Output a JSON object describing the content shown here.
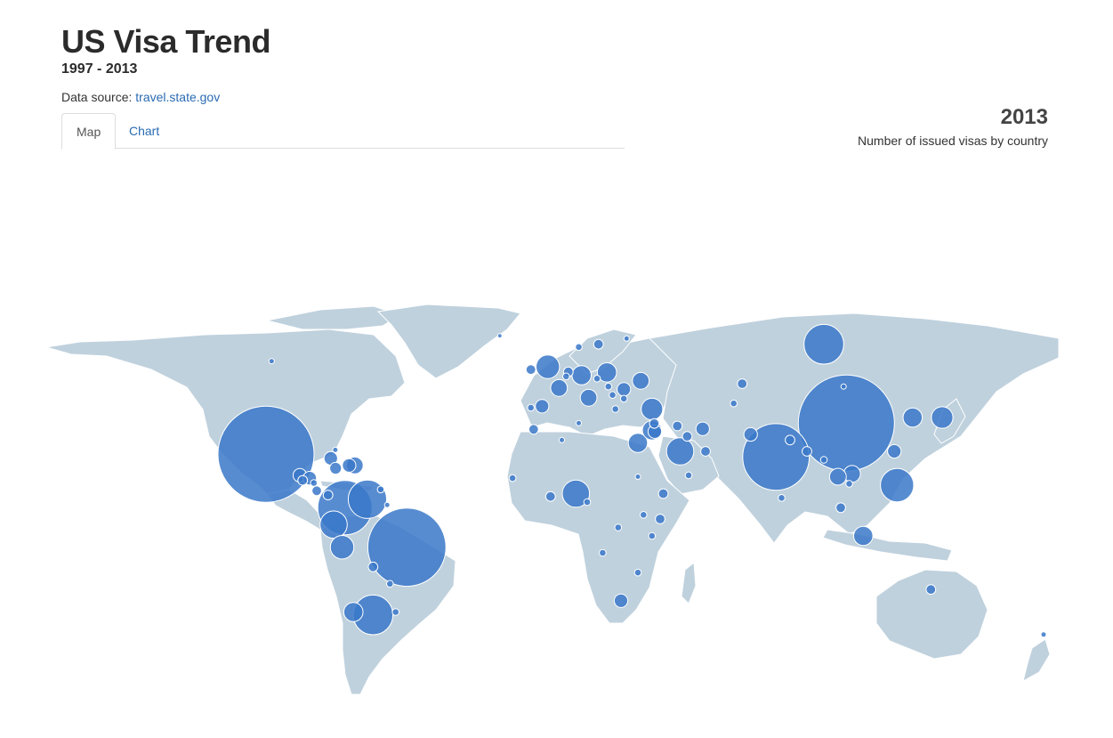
{
  "header": {
    "title": "US Visa Trend",
    "subtitle": "1997 - 2013",
    "source_prefix": "Data source: ",
    "source_link": "travel.state.gov"
  },
  "tabs": [
    {
      "label": "Map",
      "active": true
    },
    {
      "label": "Chart",
      "active": false
    }
  ],
  "year_panel": {
    "year": "2013",
    "caption": "Number of issued visas by country"
  },
  "colors": {
    "land": "#bfd1dd",
    "bubble": "#3a78c9",
    "link": "#2a6bb3"
  },
  "map": {
    "bubbles": [
      {
        "name": "Mexico",
        "lon": -102,
        "lat": 23,
        "value": 100
      },
      {
        "name": "China",
        "lon": 104,
        "lat": 34,
        "value": 100
      },
      {
        "name": "Brazil",
        "lon": -52,
        "lat": -10,
        "value": 66
      },
      {
        "name": "India",
        "lon": 79,
        "lat": 22,
        "value": 48
      },
      {
        "name": "Colombia",
        "lon": -74,
        "lat": 4,
        "value": 32
      },
      {
        "name": "Russia",
        "lon": 96,
        "lat": 62,
        "value": 17
      },
      {
        "name": "Venezuela",
        "lon": -66,
        "lat": 7,
        "value": 16
      },
      {
        "name": "Argentina",
        "lon": -64,
        "lat": -34,
        "value": 17
      },
      {
        "name": "Philippines",
        "lon": 122,
        "lat": 12,
        "value": 12
      },
      {
        "name": "Nigeria",
        "lon": 8,
        "lat": 9,
        "value": 8
      },
      {
        "name": "Saudi Arabia",
        "lon": 45,
        "lat": 24,
        "value": 8
      },
      {
        "name": "Ecuador",
        "lon": -78,
        "lat": -2,
        "value": 8
      },
      {
        "name": "Peru",
        "lon": -75,
        "lat": -10,
        "value": 6
      },
      {
        "name": "UK",
        "lon": -2,
        "lat": 54,
        "value": 6
      },
      {
        "name": "Japan",
        "lon": 138,
        "lat": 36,
        "value": 5
      },
      {
        "name": "South Korea",
        "lon": 127.5,
        "lat": 36,
        "value": 4
      },
      {
        "name": "Turkey",
        "lon": 35,
        "lat": 39,
        "value": 5
      },
      {
        "name": "Germany",
        "lon": 10,
        "lat": 51,
        "value": 4
      },
      {
        "name": "France",
        "lon": 2,
        "lat": 46.5,
        "value": 3
      },
      {
        "name": "Italy",
        "lon": 12.5,
        "lat": 43,
        "value": 3
      },
      {
        "name": "Poland",
        "lon": 19,
        "lat": 52,
        "value": 4
      },
      {
        "name": "Ukraine",
        "lon": 31,
        "lat": 49,
        "value": 3
      },
      {
        "name": "Chile",
        "lon": -71,
        "lat": -33,
        "value": 4
      },
      {
        "name": "Egypt",
        "lon": 30,
        "lat": 27,
        "value": 4
      },
      {
        "name": "Israel",
        "lon": 35,
        "lat": 31.5,
        "value": 4
      },
      {
        "name": "Indonesia",
        "lon": 110,
        "lat": -6,
        "value": 4
      },
      {
        "name": "Vietnam",
        "lon": 106,
        "lat": 16,
        "value": 3
      },
      {
        "name": "Thailand",
        "lon": 101,
        "lat": 15,
        "value": 3
      },
      {
        "name": "Iran",
        "lon": 53,
        "lat": 32,
        "value": 2
      },
      {
        "name": "Pakistan",
        "lon": 70,
        "lat": 30,
        "value": 2
      },
      {
        "name": "Taiwan",
        "lon": 121,
        "lat": 24,
        "value": 2
      },
      {
        "name": "Dominican Republic",
        "lon": -70.5,
        "lat": 19,
        "value": 3
      },
      {
        "name": "Haiti",
        "lon": -72.5,
        "lat": 19,
        "value": 2
      },
      {
        "name": "Cuba",
        "lon": -79,
        "lat": 21.5,
        "value": 2
      },
      {
        "name": "Guatemala",
        "lon": -90,
        "lat": 15.5,
        "value": 2
      },
      {
        "name": "Honduras",
        "lon": -86.5,
        "lat": 14.5,
        "value": 2
      },
      {
        "name": "El Salvador",
        "lon": -89,
        "lat": 13.7,
        "value": 1
      },
      {
        "name": "Jamaica",
        "lon": -77.3,
        "lat": 18,
        "value": 1.5
      },
      {
        "name": "Costa Rica",
        "lon": -84,
        "lat": 10,
        "value": 1
      },
      {
        "name": "Panama",
        "lon": -80,
        "lat": 8.5,
        "value": 1
      },
      {
        "name": "Spain",
        "lon": -4,
        "lat": 40,
        "value": 2
      },
      {
        "name": "Ireland",
        "lon": -8,
        "lat": 53,
        "value": 1
      },
      {
        "name": "Romania",
        "lon": 25,
        "lat": 46,
        "value": 2
      },
      {
        "name": "Jordan",
        "lon": 36,
        "lat": 31,
        "value": 2
      },
      {
        "name": "Lebanon",
        "lon": 35.8,
        "lat": 33.9,
        "value": 1
      },
      {
        "name": "UAE",
        "lon": 54,
        "lat": 24,
        "value": 1
      },
      {
        "name": "Kuwait",
        "lon": 47.5,
        "lat": 29.3,
        "value": 1
      },
      {
        "name": "Iraq",
        "lon": 44,
        "lat": 33,
        "value": 1
      },
      {
        "name": "South Africa",
        "lon": 24,
        "lat": -29,
        "value": 2
      },
      {
        "name": "Kenya",
        "lon": 37.9,
        "lat": 0,
        "value": 1
      },
      {
        "name": "Ghana",
        "lon": -1,
        "lat": 8,
        "value": 1
      },
      {
        "name": "Ethiopia",
        "lon": 39,
        "lat": 9,
        "value": 1
      },
      {
        "name": "Bangladesh",
        "lon": 90,
        "lat": 24,
        "value": 1
      },
      {
        "name": "Nepal",
        "lon": 84,
        "lat": 28,
        "value": 1
      },
      {
        "name": "Sri Lanka",
        "lon": 81,
        "lat": 7.5,
        "value": 0.5
      },
      {
        "name": "Malaysia",
        "lon": 102,
        "lat": 4,
        "value": 1
      },
      {
        "name": "Australia",
        "lon": 134,
        "lat": -25,
        "value": 1
      },
      {
        "name": "New Zealand",
        "lon": 174,
        "lat": -41,
        "value": 0.3
      },
      {
        "name": "Bolivia",
        "lon": -64,
        "lat": -17,
        "value": 1
      },
      {
        "name": "Paraguay",
        "lon": -58,
        "lat": -23,
        "value": 0.5
      },
      {
        "name": "Uruguay",
        "lon": -56,
        "lat": -33,
        "value": 0.5
      },
      {
        "name": "Netherlands",
        "lon": 5.3,
        "lat": 52.2,
        "value": 1
      },
      {
        "name": "Belgium",
        "lon": 4.5,
        "lat": 50.6,
        "value": 0.5
      },
      {
        "name": "Sweden",
        "lon": 16,
        "lat": 62,
        "value": 1
      },
      {
        "name": "Norway",
        "lon": 9,
        "lat": 61,
        "value": 0.5
      },
      {
        "name": "Finland",
        "lon": 26,
        "lat": 64,
        "value": 0.3
      },
      {
        "name": "Czech Republic",
        "lon": 15.5,
        "lat": 49.8,
        "value": 0.5
      },
      {
        "name": "Hungary",
        "lon": 19.5,
        "lat": 47,
        "value": 0.5
      },
      {
        "name": "Serbia",
        "lon": 21,
        "lat": 44,
        "value": 0.5
      },
      {
        "name": "Bulgaria",
        "lon": 25,
        "lat": 42.7,
        "value": 0.5
      },
      {
        "name": "Greece",
        "lon": 22,
        "lat": 39,
        "value": 0.5
      },
      {
        "name": "Portugal",
        "lon": -8,
        "lat": 39.5,
        "value": 0.5
      },
      {
        "name": "Morocco",
        "lon": -7,
        "lat": 31.8,
        "value": 1
      },
      {
        "name": "Algeria",
        "lon": 3,
        "lat": 28,
        "value": 0.3
      },
      {
        "name": "Tunisia",
        "lon": 9,
        "lat": 34,
        "value": 0.3
      },
      {
        "name": "Senegal",
        "lon": -14.5,
        "lat": 14.5,
        "value": 0.5
      },
      {
        "name": "Cameroon",
        "lon": 12,
        "lat": 6,
        "value": 0.5
      },
      {
        "name": "Kazakhstan",
        "lon": 67,
        "lat": 48,
        "value": 1
      },
      {
        "name": "Uzbekistan",
        "lon": 64,
        "lat": 41,
        "value": 0.5
      },
      {
        "name": "Mongolia",
        "lon": 103,
        "lat": 47,
        "value": 0.3
      },
      {
        "name": "Cambodia",
        "lon": 105,
        "lat": 12.5,
        "value": 0.5
      },
      {
        "name": "Myanmar",
        "lon": 96,
        "lat": 21,
        "value": 0.5
      },
      {
        "name": "Zimbabwe",
        "lon": 30,
        "lat": -19,
        "value": 0.5
      },
      {
        "name": "Angola",
        "lon": 17.5,
        "lat": -12,
        "value": 0.5
      },
      {
        "name": "DR Congo",
        "lon": 23,
        "lat": -3,
        "value": 0.5
      },
      {
        "name": "Tanzania",
        "lon": 35,
        "lat": -6,
        "value": 0.5
      },
      {
        "name": "Uganda",
        "lon": 32,
        "lat": 1.5,
        "value": 0.5
      },
      {
        "name": "Sudan",
        "lon": 30,
        "lat": 15,
        "value": 0.3
      },
      {
        "name": "Yemen",
        "lon": 48,
        "lat": 15.5,
        "value": 0.5
      },
      {
        "name": "Trinidad",
        "lon": -61.3,
        "lat": 10.5,
        "value": 0.5
      },
      {
        "name": "Guyana",
        "lon": -59,
        "lat": 5,
        "value": 0.3
      },
      {
        "name": "Nicaragua",
        "lon": -85,
        "lat": 12.8,
        "value": 0.5
      },
      {
        "name": "Bahamas",
        "lon": -77.4,
        "lat": 24.5,
        "value": 0.3
      },
      {
        "name": "Canada",
        "lon": -100,
        "lat": 56,
        "value": 0.3
      },
      {
        "name": "Iceland",
        "lon": -19,
        "lat": 65,
        "value": 0.2
      }
    ]
  }
}
